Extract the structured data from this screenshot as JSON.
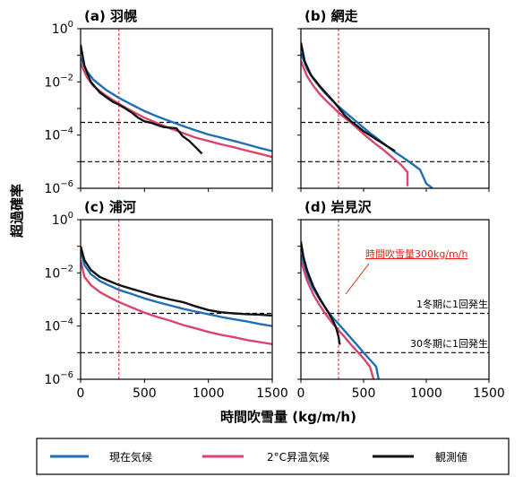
{
  "colors": {
    "current": "#1f6fb8",
    "warming": "#d8456e",
    "observed": "#111111",
    "threshold_red": "#e8231a"
  },
  "axis": {
    "xlabel": "時間吹雪量 (kg/m/h)",
    "ylabel": "超過確率",
    "xticks": [
      "0",
      "500",
      "1000",
      "1500"
    ],
    "yticks": [
      {
        "base": "10",
        "exp": "0"
      },
      {
        "base": "10",
        "exp": "−2"
      },
      {
        "base": "10",
        "exp": "−4"
      },
      {
        "base": "10",
        "exp": "−6"
      }
    ]
  },
  "annotations": {
    "threshold_label": "時間吹雪量300kg/m/h",
    "line1_label": "1冬期に1回発生",
    "line2_label": "30冬期に1回発生"
  },
  "legend": {
    "current": "現在気候",
    "warming": "2°C昇温気候",
    "observed": "観測値"
  },
  "chart_data": [
    {
      "type": "line",
      "panel": "(a) 羽幌",
      "xlim": [
        0,
        1500
      ],
      "ylim_log10": [
        -6,
        0
      ],
      "yscale": "log",
      "vline_x": 300,
      "hlines": [
        0.0003,
        1e-05
      ],
      "series": [
        {
          "name": "現在気候",
          "x": [
            0,
            50,
            100,
            200,
            300,
            400,
            500,
            600,
            700,
            800,
            900,
            1000,
            1100,
            1200,
            1300,
            1400,
            1500
          ],
          "y": [
            0.08,
            0.025,
            0.012,
            0.005,
            0.0025,
            0.0014,
            0.0008,
            0.0005,
            0.00033,
            0.00022,
            0.00015,
            0.000105,
            8e-05,
            6e-05,
            4.5e-05,
            3.3e-05,
            2.5e-05
          ]
        },
        {
          "name": "2°C昇温気候",
          "x": [
            0,
            50,
            100,
            200,
            300,
            400,
            500,
            600,
            700,
            800,
            900,
            1000,
            1100,
            1200,
            1300,
            1400,
            1500
          ],
          "y": [
            0.05,
            0.015,
            0.007,
            0.003,
            0.0015,
            0.0008,
            0.00045,
            0.00028,
            0.00018,
            0.00012,
            8e-05,
            6e-05,
            4.5e-05,
            3.5e-05,
            2.6e-05,
            2e-05,
            1.5e-05
          ]
        },
        {
          "name": "観測値",
          "x": [
            0,
            30,
            80,
            150,
            250,
            300,
            350,
            400,
            450,
            500,
            550,
            600,
            650,
            700,
            750,
            800,
            850,
            900,
            950
          ],
          "y": [
            0.25,
            0.04,
            0.01,
            0.004,
            0.0018,
            0.0014,
            0.001,
            0.0007,
            0.00045,
            0.00033,
            0.00029,
            0.00024,
            0.0002,
            0.00019,
            0.00018,
            9e-05,
            6e-05,
            3.5e-05,
            2e-05
          ]
        }
      ]
    },
    {
      "type": "line",
      "panel": "(b) 網走",
      "xlim": [
        0,
        1500
      ],
      "ylim_log10": [
        -6,
        0
      ],
      "yscale": "log",
      "vline_x": 300,
      "hlines": [
        0.0003,
        1e-05
      ],
      "series": [
        {
          "name": "現在気候",
          "x": [
            0,
            50,
            100,
            150,
            200,
            250,
            300,
            350,
            400,
            450,
            500,
            550,
            600,
            650,
            700,
            750,
            800,
            850,
            900,
            950,
            1000,
            1050
          ],
          "y": [
            0.12,
            0.03,
            0.013,
            0.0065,
            0.0035,
            0.002,
            0.0012,
            0.00075,
            0.00047,
            0.0003,
            0.00019,
            0.00012,
            8e-05,
            5.2e-05,
            3.5e-05,
            2.3e-05,
            1.6e-05,
            1.1e-05,
            7.5e-06,
            5e-06,
            1.5e-06,
            1e-06
          ]
        },
        {
          "name": "2°C昇温気候",
          "x": [
            0,
            50,
            100,
            150,
            200,
            250,
            300,
            350,
            400,
            450,
            500,
            550,
            600,
            650,
            700,
            750,
            800,
            850,
            850
          ],
          "y": [
            0.06,
            0.016,
            0.007,
            0.0035,
            0.002,
            0.0012,
            0.0007,
            0.00045,
            0.00029,
            0.00018,
            0.00011,
            7e-05,
            4.5e-05,
            3e-05,
            1.9e-05,
            1.2e-05,
            7.5e-06,
            4e-06,
            1.2e-06
          ]
        },
        {
          "name": "観測値",
          "x": [
            0,
            30,
            80,
            150,
            200,
            250,
            300,
            350,
            400,
            450,
            500,
            550,
            600,
            650,
            700,
            750
          ],
          "y": [
            0.3,
            0.06,
            0.018,
            0.007,
            0.0038,
            0.0021,
            0.0011,
            0.00055,
            0.00033,
            0.00022,
            0.00014,
            0.0001,
            7e-05,
            5e-05,
            3.5e-05,
            2.5e-05
          ]
        }
      ]
    },
    {
      "type": "line",
      "panel": "(c) 浦河",
      "xlim": [
        0,
        1500
      ],
      "ylim_log10": [
        -6,
        0
      ],
      "yscale": "log",
      "vline_x": 300,
      "hlines": [
        0.0003,
        1e-05
      ],
      "series": [
        {
          "name": "現在気候",
          "x": [
            0,
            30,
            80,
            150,
            200,
            300,
            400,
            500,
            600,
            700,
            800,
            900,
            1000,
            1100,
            1200,
            1300,
            1400,
            1500
          ],
          "y": [
            0.07,
            0.02,
            0.009,
            0.005,
            0.0038,
            0.0023,
            0.0016,
            0.0011,
            0.0008,
            0.0006,
            0.00045,
            0.00035,
            0.00028,
            0.00022,
            0.00018,
            0.00015,
            0.00012,
            0.0001
          ]
        },
        {
          "name": "2°C昇温気候",
          "x": [
            0,
            30,
            80,
            150,
            200,
            300,
            400,
            500,
            600,
            700,
            800,
            900,
            1000,
            1100,
            1200,
            1300,
            1400,
            1500
          ],
          "y": [
            0.03,
            0.007,
            0.0035,
            0.0019,
            0.0014,
            0.0008,
            0.0005,
            0.00032,
            0.00022,
            0.00016,
            0.00011,
            8.2e-05,
            6e-05,
            4.7e-05,
            3.8e-05,
            3e-05,
            2.5e-05,
            2.1e-05
          ]
        },
        {
          "name": "観測値",
          "x": [
            0,
            30,
            80,
            150,
            200,
            300,
            400,
            500,
            600,
            700,
            800,
            900,
            1000,
            1100,
            1200,
            1300,
            1400,
            1500
          ],
          "y": [
            0.1,
            0.03,
            0.013,
            0.007,
            0.0055,
            0.0035,
            0.0025,
            0.0018,
            0.0013,
            0.001,
            0.0008,
            0.00055,
            0.0004,
            0.00033,
            0.0003,
            0.00028,
            0.00027,
            0.00025
          ]
        }
      ]
    },
    {
      "type": "line",
      "panel": "(d) 岩見沢",
      "xlim": [
        0,
        1500
      ],
      "ylim_log10": [
        -6,
        0
      ],
      "yscale": "log",
      "vline_x": 300,
      "hlines": [
        0.0003,
        1e-05
      ],
      "series": [
        {
          "name": "現在気候",
          "x": [
            0,
            25,
            50,
            100,
            150,
            200,
            250,
            300,
            350,
            400,
            450,
            500,
            550,
            600,
            620
          ],
          "y": [
            0.05,
            0.02,
            0.008,
            0.0025,
            0.001,
            0.00045,
            0.00022,
            0.00012,
            6.5e-05,
            3.5e-05,
            1.9e-05,
            1e-05,
            5.5e-06,
            3e-06,
            1e-06
          ]
        },
        {
          "name": "2°C昇温気候",
          "x": [
            0,
            25,
            50,
            100,
            150,
            200,
            250,
            300,
            350,
            400,
            450,
            500,
            550,
            580
          ],
          "y": [
            0.03,
            0.012,
            0.005,
            0.0015,
            0.0006,
            0.00027,
            0.00013,
            7e-05,
            3.8e-05,
            2e-05,
            1.1e-05,
            6e-06,
            3e-06,
            1e-06
          ]
        },
        {
          "name": "観測値",
          "x": [
            0,
            20,
            50,
            100,
            150,
            200,
            250,
            280,
            300,
            310
          ],
          "y": [
            0.15,
            0.04,
            0.012,
            0.003,
            0.0011,
            0.00045,
            0.00018,
            9e-05,
            4e-05,
            2e-05
          ]
        }
      ]
    }
  ]
}
